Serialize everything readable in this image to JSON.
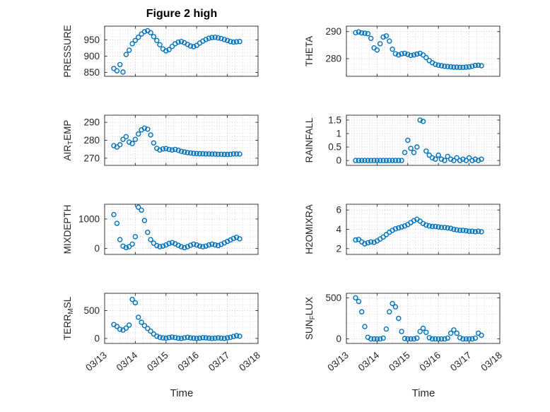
{
  "chart_data": {
    "type": "scatter",
    "title": "Figure 2 high",
    "xlabel": "Time",
    "marker_color": "#0072BD",
    "axis_color": "#262626",
    "grid": true,
    "grid_style": "dotted",
    "legend": "none",
    "xlim_days": [
      0,
      5
    ],
    "x_tick_positions": [
      0,
      1,
      2,
      3,
      4,
      5
    ],
    "x_tick_labels": [
      "03/13",
      "03/14",
      "03/15",
      "03/16",
      "03/17",
      "03/18"
    ],
    "x_days": [
      0.3,
      0.4,
      0.5,
      0.6,
      0.7,
      0.8,
      0.9,
      1.0,
      1.1,
      1.2,
      1.3,
      1.4,
      1.5,
      1.6,
      1.7,
      1.8,
      1.9,
      2.0,
      2.1,
      2.2,
      2.3,
      2.4,
      2.5,
      2.6,
      2.7,
      2.8,
      2.9,
      3.0,
      3.1,
      3.2,
      3.3,
      3.4,
      3.5,
      3.6,
      3.7,
      3.8,
      3.9,
      4.0,
      4.1,
      4.2,
      4.3,
      4.4
    ],
    "subplots": [
      {
        "name": "PRESSURE",
        "row": 0,
        "col": 0,
        "ylabel": "PRESSURE",
        "ylabel_parts": [
          {
            "t": "PRESSURE"
          }
        ],
        "ylim": [
          838,
          992
        ],
        "yticks": [
          850,
          900,
          950
        ],
        "ytick_labels": [
          "850",
          "900",
          "950"
        ],
        "y": [
          862,
          855,
          874,
          851,
          905,
          918,
          938,
          948,
          958,
          968,
          975,
          978,
          972,
          960,
          948,
          935,
          922,
          916,
          920,
          930,
          938,
          943,
          945,
          941,
          936,
          931,
          929,
          933,
          940,
          946,
          951,
          955,
          957,
          958,
          956,
          954,
          951,
          948,
          945,
          943,
          944,
          945
        ]
      },
      {
        "name": "THETA",
        "row": 0,
        "col": 1,
        "ylabel": "THETA",
        "ylabel_parts": [
          {
            "t": "THETA"
          }
        ],
        "ylim": [
          273.5,
          292
        ],
        "yticks": [
          280,
          290
        ],
        "ytick_labels": [
          "280",
          "290"
        ],
        "y": [
          289.6,
          289.9,
          289.5,
          289.4,
          289.2,
          287.5,
          284.0,
          283.2,
          285.5,
          288.0,
          288.4,
          286.5,
          283.5,
          281.8,
          281.4,
          281.8,
          282.0,
          281.6,
          281.2,
          281.4,
          281.7,
          282.0,
          281.4,
          280.4,
          279.3,
          278.5,
          277.9,
          277.6,
          277.4,
          277.2,
          277.1,
          277.0,
          276.9,
          276.9,
          276.8,
          276.8,
          276.9,
          277.0,
          277.2,
          277.5,
          277.6,
          277.4
        ]
      },
      {
        "name": "AIR_TEMP",
        "row": 1,
        "col": 0,
        "ylabel": "AIR_TEMP",
        "ylabel_parts": [
          {
            "t": "AIR"
          },
          {
            "t": "T",
            "sub": true
          },
          {
            "t": "EMP"
          }
        ],
        "ylim": [
          266,
          294
        ],
        "yticks": [
          270,
          280,
          290
        ],
        "ytick_labels": [
          "270",
          "280",
          "290"
        ],
        "y": [
          277.0,
          276.2,
          277.5,
          280.5,
          282.0,
          279.0,
          278.2,
          280.5,
          283.5,
          285.8,
          286.8,
          286.2,
          283.0,
          278.5,
          275.5,
          274.6,
          275.2,
          275.4,
          274.9,
          274.6,
          274.9,
          274.4,
          273.8,
          273.4,
          273.1,
          272.9,
          272.7,
          272.6,
          272.5,
          272.5,
          272.4,
          272.4,
          272.3,
          272.3,
          272.2,
          272.2,
          272.1,
          272.1,
          272.2,
          272.4,
          272.4,
          272.3
        ]
      },
      {
        "name": "RAINFALL",
        "row": 1,
        "col": 1,
        "ylabel": "RAINFALL",
        "ylabel_parts": [
          {
            "t": "RAINFALL"
          }
        ],
        "ylim": [
          -0.18,
          1.68
        ],
        "yticks": [
          0,
          0.5,
          1,
          1.5
        ],
        "ytick_labels": [
          "0",
          "0.5",
          "1",
          "1.5"
        ],
        "y": [
          0,
          0,
          0,
          0,
          0,
          0,
          0,
          0,
          0,
          0,
          0,
          0,
          0,
          0,
          0,
          0,
          0.3,
          0.75,
          0.45,
          0.3,
          0.5,
          1.5,
          1.45,
          0.35,
          0.2,
          0.1,
          0.05,
          0.2,
          0.05,
          0,
          0.15,
          0.05,
          0,
          0.1,
          0,
          0.05,
          0,
          0.1,
          0,
          0.05,
          0,
          0.05
        ]
      },
      {
        "name": "MIXDEPTH",
        "row": 2,
        "col": 0,
        "ylabel": "MIXDEPTH",
        "ylabel_parts": [
          {
            "t": "MIXDEPTH"
          }
        ],
        "ylim": [
          -200,
          1500
        ],
        "yticks": [
          0,
          1000
        ],
        "ytick_labels": [
          "0",
          "1000"
        ],
        "y": [
          1150,
          850,
          300,
          80,
          30,
          60,
          150,
          400,
          1400,
          1300,
          950,
          550,
          300,
          180,
          100,
          60,
          80,
          120,
          170,
          200,
          160,
          110,
          60,
          30,
          60,
          110,
          150,
          120,
          80,
          60,
          80,
          120,
          150,
          120,
          100,
          140,
          190,
          240,
          290,
          340,
          380,
          330
        ]
      },
      {
        "name": "H2OMIXRA",
        "row": 2,
        "col": 1,
        "ylabel": "H2OMIXRA",
        "ylabel_parts": [
          {
            "t": "H2OMIXRA"
          }
        ],
        "ylim": [
          1.4,
          6.6
        ],
        "yticks": [
          2,
          4,
          6
        ],
        "ytick_labels": [
          "2",
          "4",
          "6"
        ],
        "y": [
          2.9,
          2.95,
          2.7,
          2.5,
          2.6,
          2.7,
          2.65,
          2.8,
          3.0,
          3.2,
          3.45,
          3.7,
          3.9,
          4.05,
          4.15,
          4.25,
          4.35,
          4.5,
          4.7,
          4.9,
          5.05,
          4.85,
          4.6,
          4.45,
          4.35,
          4.3,
          4.3,
          4.25,
          4.2,
          4.2,
          4.15,
          4.1,
          4.0,
          3.95,
          3.9,
          3.9,
          3.85,
          3.8,
          3.8,
          3.75,
          3.8,
          3.75
        ]
      },
      {
        "name": "TERR_MSL",
        "row": 3,
        "col": 0,
        "ylabel": "TERR_MSL",
        "ylabel_parts": [
          {
            "t": "TERR"
          },
          {
            "t": "M",
            "sub": true
          },
          {
            "t": "SL"
          }
        ],
        "ylim": [
          -90,
          810
        ],
        "yticks": [
          0,
          500
        ],
        "ytick_labels": [
          "0",
          "500"
        ],
        "y": [
          250,
          215,
          165,
          150,
          185,
          240,
          700,
          640,
          380,
          290,
          230,
          180,
          130,
          80,
          40,
          20,
          10,
          5,
          15,
          25,
          15,
          5,
          0,
          10,
          20,
          10,
          5,
          0,
          5,
          15,
          10,
          5,
          0,
          5,
          10,
          5,
          0,
          10,
          20,
          35,
          50,
          40
        ]
      },
      {
        "name": "SUN_FLUX",
        "row": 3,
        "col": 1,
        "ylabel": "SUN_FLUX",
        "ylabel_parts": [
          {
            "t": "SUN"
          },
          {
            "t": "F",
            "sub": true
          },
          {
            "t": "LUX"
          }
        ],
        "ylim": [
          -55,
          555
        ],
        "yticks": [
          0,
          500
        ],
        "ytick_labels": [
          "0",
          "500"
        ],
        "y": [
          500,
          455,
          330,
          150,
          20,
          0,
          0,
          0,
          0,
          10,
          120,
          330,
          430,
          390,
          250,
          90,
          5,
          0,
          0,
          0,
          10,
          90,
          130,
          80,
          15,
          0,
          0,
          0,
          0,
          0,
          10,
          70,
          110,
          70,
          15,
          0,
          0,
          0,
          0,
          10,
          70,
          45
        ]
      }
    ]
  }
}
